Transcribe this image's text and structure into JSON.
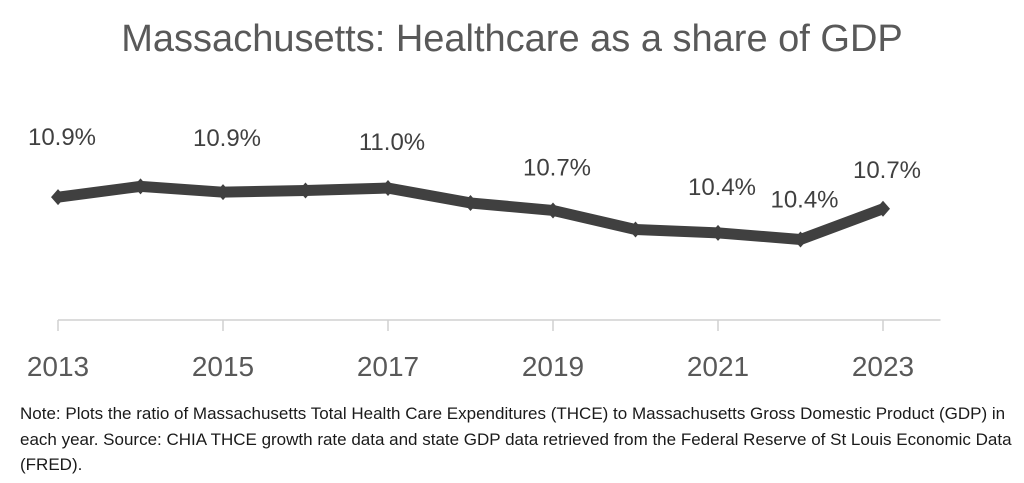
{
  "chart_data": {
    "type": "line",
    "title": "Massachusetts: Healthcare as a share of GDP",
    "xlabel": "",
    "ylabel": "",
    "x": [
      2013,
      2014,
      2015,
      2016,
      2017,
      2018,
      2019,
      2020,
      2021,
      2022,
      2023
    ],
    "values": [
      10.88,
      11.01,
      10.94,
      10.96,
      10.99,
      10.81,
      10.72,
      10.49,
      10.45,
      10.37,
      10.74
    ],
    "data_labels": [
      {
        "year": 2013,
        "text": "10.9%"
      },
      {
        "year": 2015,
        "text": "10.9%"
      },
      {
        "year": 2017,
        "text": "11.0%"
      },
      {
        "year": 2019,
        "text": "10.7%"
      },
      {
        "year": 2021,
        "text": "10.4%"
      },
      {
        "year": 2022,
        "text": "10.4%"
      },
      {
        "year": 2023,
        "text": "10.7%"
      }
    ],
    "x_tick_labels": [
      "2013",
      "2015",
      "2017",
      "2019",
      "2021",
      "2023"
    ],
    "ylim": [
      9.4,
      11.6
    ],
    "grid": false,
    "line_color": "#404040"
  },
  "note": "Note: Plots the ratio of Massachusetts Total Health Care Expenditures (THCE) to Massachusetts Gross Domestic Product (GDP) in each year. Source: CHIA THCE growth rate data and state GDP data retrieved from the Federal Reserve of St Louis Economic Data (FRED)."
}
